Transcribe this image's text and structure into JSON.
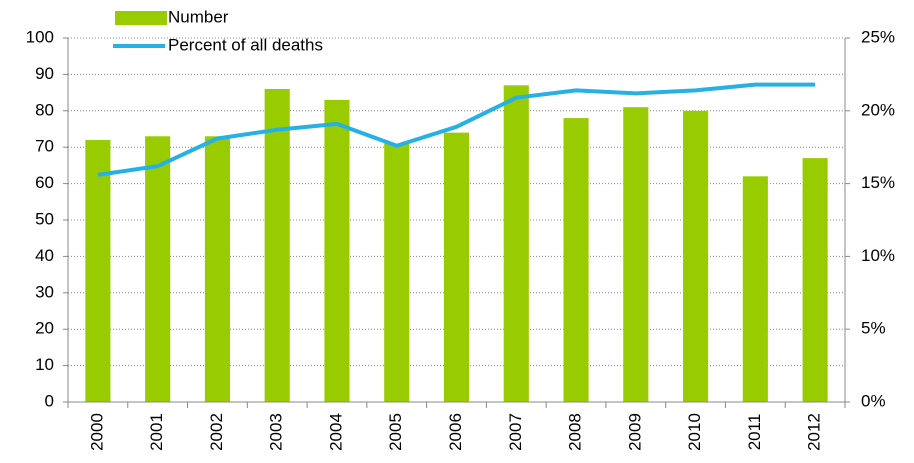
{
  "chart_data": {
    "type": "bar_line",
    "categories": [
      "2000",
      "2001",
      "2002",
      "2003",
      "2004",
      "2005",
      "2006",
      "2007",
      "2008",
      "2009",
      "2010",
      "2011",
      "2012"
    ],
    "series": [
      {
        "name": "Number",
        "type": "bar",
        "color": "#99cc00",
        "values": [
          72,
          73,
          73,
          86,
          83,
          71,
          74,
          87,
          78,
          81,
          80,
          62,
          67
        ]
      },
      {
        "name": "Percent of all deaths",
        "type": "line",
        "axis": "y2",
        "color": "#26b1e6",
        "values": [
          15.6,
          16.2,
          18.1,
          18.7,
          19.1,
          17.6,
          18.9,
          20.9,
          21.4,
          21.2,
          21.4,
          21.8,
          21.8
        ]
      }
    ],
    "ylim": [
      0,
      100
    ],
    "yticks": [
      0,
      10,
      20,
      30,
      40,
      50,
      60,
      70,
      80,
      90,
      100
    ],
    "y2lim": [
      0,
      25
    ],
    "y2ticks": [
      {
        "value": 0,
        "label": "0%"
      },
      {
        "value": 5,
        "label": "5%"
      },
      {
        "value": 10,
        "label": "10%"
      },
      {
        "value": 15,
        "label": "15%"
      },
      {
        "value": 20,
        "label": "20%"
      },
      {
        "value": 25,
        "label": "25%"
      }
    ],
    "grid": true,
    "legend": "top-left"
  }
}
